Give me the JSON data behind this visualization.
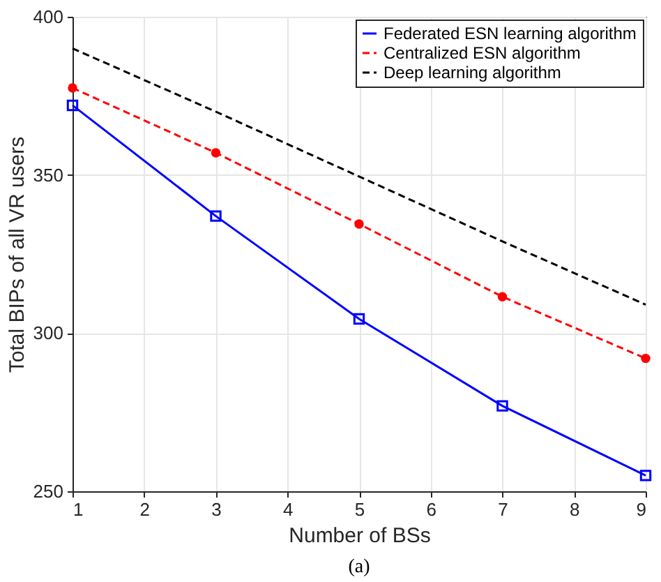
{
  "chart_data": {
    "type": "line",
    "xlabel": "Number of BSs",
    "ylabel": "Total BIPs of all VR users",
    "x": [
      1,
      3,
      5,
      7,
      9
    ],
    "series": [
      {
        "name": "Federated ESN learning algorithm",
        "color": "#0000ff",
        "values": [
          372,
          337,
          304.5,
          277,
          255
        ],
        "marker": "square",
        "line_style": "solid"
      },
      {
        "name": "Centralized ESN algorithm",
        "color": "#ff0000",
        "values": [
          377.5,
          357,
          334.5,
          311.5,
          292
        ],
        "marker": "circle",
        "line_style": "dashed"
      },
      {
        "name": "Deep learning algorithm",
        "color": "#000000",
        "values": [
          390,
          370,
          349.5,
          329,
          309
        ],
        "marker": "none",
        "line_style": "dashed"
      }
    ],
    "xlim": [
      1,
      9
    ],
    "xticks": [
      1,
      2,
      3,
      4,
      5,
      6,
      7,
      8,
      9
    ],
    "ylim": [
      250,
      400
    ],
    "yticks": [
      250,
      300,
      350,
      400
    ],
    "grid": true,
    "legend": "top right",
    "annotations": [
      "(a)"
    ]
  }
}
